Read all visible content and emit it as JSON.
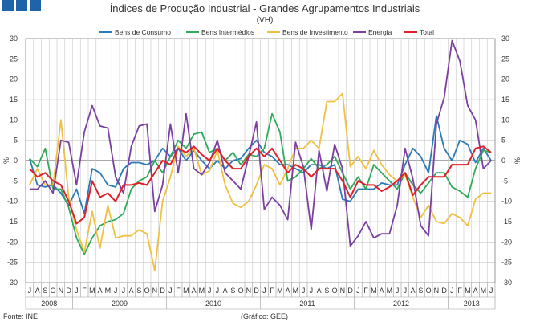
{
  "chart_data": {
    "type": "line",
    "title": "Índices de Produção Industrial - Grandes Agrupamentos Industriais",
    "subtitle": "(VH)",
    "ylabel_left": "%",
    "ylabel_right": "%",
    "ylim": [
      -30,
      30
    ],
    "yticks": [
      30,
      25,
      20,
      15,
      10,
      5,
      0,
      -5,
      -10,
      -15,
      -20,
      -25,
      -30
    ],
    "grid": true,
    "legend": "top",
    "months": [
      "J",
      "A",
      "S",
      "O",
      "N",
      "D",
      "J",
      "F",
      "M",
      "A",
      "M",
      "J",
      "J",
      "A",
      "S",
      "O",
      "N",
      "D",
      "J",
      "F",
      "M",
      "A",
      "M",
      "J",
      "J",
      "A",
      "S",
      "O",
      "N",
      "D",
      "J",
      "F",
      "M",
      "A",
      "M",
      "J",
      "J",
      "A",
      "S",
      "O",
      "N",
      "D",
      "J",
      "F",
      "M",
      "A",
      "M",
      "J",
      "J",
      "A",
      "S",
      "O",
      "N",
      "D",
      "J",
      "F",
      "M",
      "A",
      "M",
      "J"
    ],
    "years": [
      {
        "label": "2008",
        "start": 0,
        "end": 6
      },
      {
        "label": "2009",
        "start": 6,
        "end": 18
      },
      {
        "label": "2010",
        "start": 18,
        "end": 30
      },
      {
        "label": "2011",
        "start": 30,
        "end": 42
      },
      {
        "label": "2012",
        "start": 42,
        "end": 54
      },
      {
        "label": "2013",
        "start": 54,
        "end": 60
      }
    ],
    "series": [
      {
        "name": "Bens de Consumo",
        "color": "#2a7ab8",
        "values": [
          0.5,
          -6,
          -6.5,
          -6,
          -8,
          -11,
          -7,
          -13,
          -2,
          -3,
          -6,
          -6.5,
          -2,
          -0.5,
          -0.5,
          -1,
          0,
          3,
          1,
          3,
          0,
          2.5,
          0,
          -2,
          0,
          -2,
          0,
          0.5,
          3,
          5,
          2,
          1,
          -1,
          -1,
          -2,
          -3,
          -1,
          -1,
          -2,
          -1,
          -9.5,
          -10,
          -7,
          -7,
          -7,
          -5.5,
          -6,
          -6,
          -1,
          3,
          1,
          -3,
          11,
          3,
          0,
          5,
          4,
          -0.5,
          3,
          0
        ]
      },
      {
        "name": "Bens Intermédios",
        "color": "#2eaa5a",
        "values": [
          0.5,
          -1.5,
          3,
          -7,
          -7,
          -11.5,
          -19,
          -23,
          -19,
          -16,
          -15,
          -14.5,
          -13,
          -7,
          -5,
          -4,
          0,
          -3,
          1,
          5,
          3,
          6.5,
          7,
          2,
          3,
          0,
          2,
          -1,
          1.5,
          1,
          3,
          11.5,
          7,
          -5,
          -4,
          -2,
          0.5,
          -2,
          -1,
          1,
          -3,
          -7,
          -4,
          -7,
          -1,
          -3,
          -5,
          -7,
          -3,
          -6,
          -8,
          -5.5,
          -3,
          -3,
          -6.5,
          -7.5,
          -9,
          -2,
          2.5,
          2
        ]
      },
      {
        "name": "Bens de Investimento",
        "color": "#f0c040",
        "values": [
          -6,
          -2,
          -6,
          -6,
          10,
          -9,
          -17,
          -22.5,
          -12.5,
          -21.5,
          -11,
          -19,
          -18.5,
          -18.5,
          -17,
          -18,
          -27,
          -10,
          -4,
          3.5,
          1,
          3,
          -3.5,
          -2.5,
          2.5,
          -6,
          -10.5,
          -11.5,
          -10,
          -6,
          -1,
          -2,
          -6,
          -2,
          3,
          3,
          5,
          3,
          14.5,
          14.5,
          16.5,
          -1.5,
          1,
          -2,
          2.5,
          -1,
          -3.5,
          -5,
          -3.5,
          -9,
          -14,
          -11,
          -15,
          -15.5,
          -13,
          -14,
          -16,
          -9.5,
          -8,
          -8
        ]
      },
      {
        "name": "Energia",
        "color": "#7b3fa0",
        "values": [
          -7,
          -7,
          -5,
          -8,
          5,
          4.5,
          -6,
          7,
          13.5,
          8.5,
          8,
          -4,
          -8,
          3.5,
          8.5,
          9,
          -12.5,
          -6,
          9,
          -3,
          11.5,
          -2,
          -3.5,
          -0.5,
          5,
          -3,
          -5,
          -7,
          1,
          9.5,
          -12,
          -9,
          -11,
          -14.5,
          4.5,
          -1.5,
          -17,
          2.5,
          -7.5,
          4,
          -2,
          -21,
          -18.5,
          -15,
          -19,
          -18,
          -18,
          -11,
          3,
          -4.5,
          -16,
          -18.5,
          9,
          15.5,
          29.5,
          24.5,
          13.5,
          10,
          -2,
          0
        ]
      },
      {
        "name": "Total",
        "color": "#e0202a",
        "values": [
          -2,
          -4,
          -3,
          -5,
          -6,
          -10,
          -15.5,
          -14,
          -5,
          -9,
          -8,
          -10,
          -6,
          -6,
          -5.5,
          -6,
          -3,
          0,
          -1,
          3,
          2,
          3.5,
          1.5,
          0,
          3,
          0,
          -2,
          -2,
          1,
          3,
          1,
          3,
          0,
          -3,
          -1,
          -2,
          -4,
          -2,
          -2,
          -2,
          -5,
          -9,
          -5,
          -6,
          -6,
          -7.5,
          -6.5,
          -5,
          -3,
          -8.5,
          -6,
          -4,
          -4,
          -4,
          -1,
          -1,
          -1,
          3,
          3.5,
          2
        ]
      }
    ],
    "footer_left": "Fonte: INE",
    "footer_center": "(Gráfico: GEE)"
  },
  "brand_color": "#1f63a8"
}
